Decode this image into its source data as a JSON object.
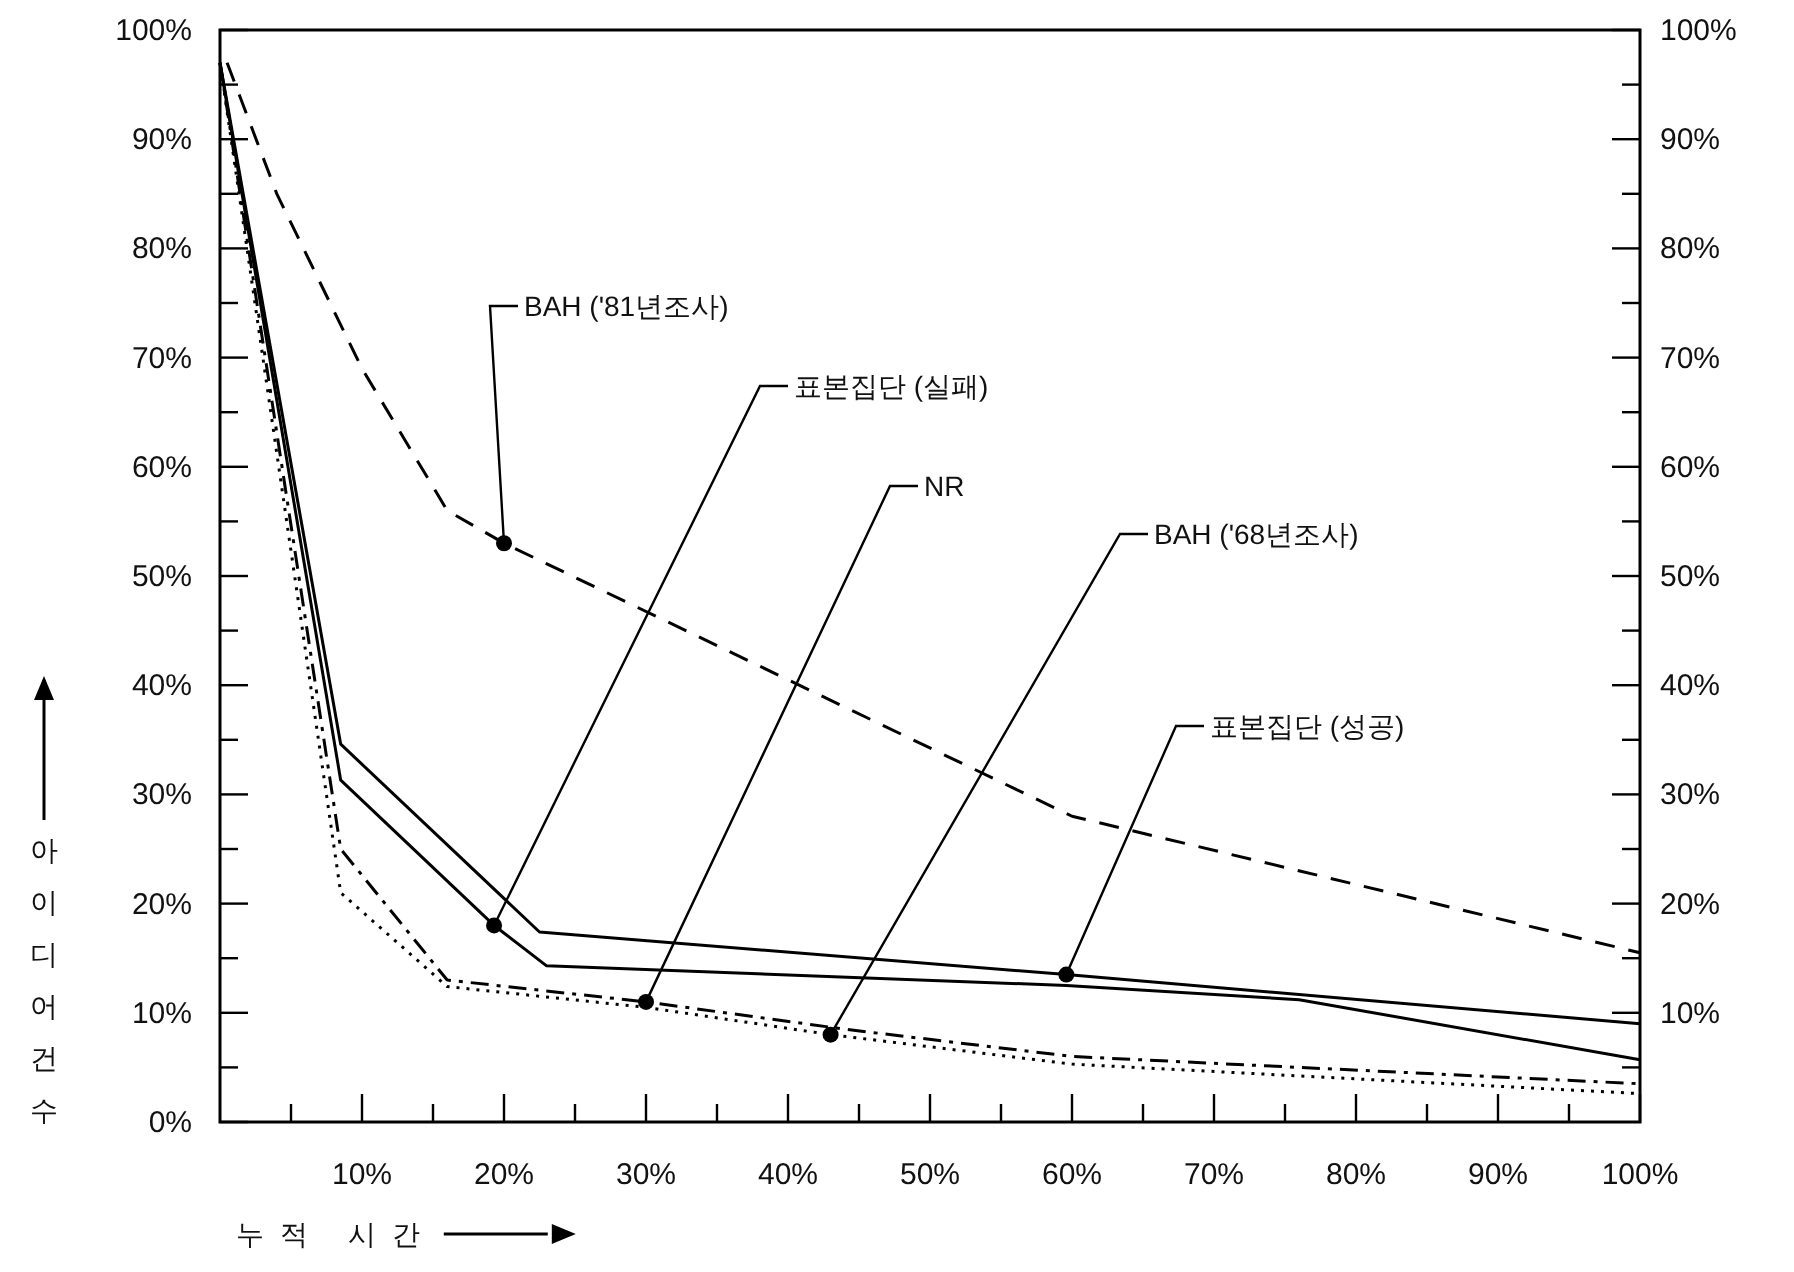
{
  "chart_data": {
    "type": "line",
    "xlim": [
      0,
      100
    ],
    "ylim": [
      0,
      100
    ],
    "y2lim": [
      0,
      100
    ],
    "xticks": [
      {
        "value": 5,
        "label": null
      },
      {
        "value": 10,
        "label": "10%"
      },
      {
        "value": 15,
        "label": null
      },
      {
        "value": 20,
        "label": "20%"
      },
      {
        "value": 25,
        "label": null
      },
      {
        "value": 30,
        "label": "30%"
      },
      {
        "value": 35,
        "label": null
      },
      {
        "value": 40,
        "label": "40%"
      },
      {
        "value": 45,
        "label": null
      },
      {
        "value": 50,
        "label": "50%"
      },
      {
        "value": 55,
        "label": null
      },
      {
        "value": 60,
        "label": "60%"
      },
      {
        "value": 65,
        "label": null
      },
      {
        "value": 70,
        "label": "70%"
      },
      {
        "value": 75,
        "label": null
      },
      {
        "value": 80,
        "label": "80%"
      },
      {
        "value": 85,
        "label": null
      },
      {
        "value": 90,
        "label": "90%"
      },
      {
        "value": 95,
        "label": null
      },
      {
        "value": 100,
        "label": "100%"
      }
    ],
    "yticks": [
      {
        "value": 0,
        "label": "0%"
      },
      {
        "value": 5,
        "label": null
      },
      {
        "value": 10,
        "label": "10%"
      },
      {
        "value": 15,
        "label": null
      },
      {
        "value": 20,
        "label": "20%"
      },
      {
        "value": 25,
        "label": null
      },
      {
        "value": 30,
        "label": "30%"
      },
      {
        "value": 35,
        "label": null
      },
      {
        "value": 40,
        "label": "40%"
      },
      {
        "value": 45,
        "label": null
      },
      {
        "value": 50,
        "label": "50%"
      },
      {
        "value": 55,
        "label": null
      },
      {
        "value": 60,
        "label": "60%"
      },
      {
        "value": 65,
        "label": null
      },
      {
        "value": 70,
        "label": "70%"
      },
      {
        "value": 75,
        "label": null
      },
      {
        "value": 80,
        "label": "80%"
      },
      {
        "value": 85,
        "label": null
      },
      {
        "value": 90,
        "label": "90%"
      },
      {
        "value": 95,
        "label": null
      },
      {
        "value": 100,
        "label": "100%"
      }
    ],
    "y2ticks": [
      {
        "value": 5,
        "label": null
      },
      {
        "value": 10,
        "label": "10%"
      },
      {
        "value": 15,
        "label": null
      },
      {
        "value": 20,
        "label": "20%"
      },
      {
        "value": 25,
        "label": null
      },
      {
        "value": 30,
        "label": "30%"
      },
      {
        "value": 35,
        "label": null
      },
      {
        "value": 40,
        "label": "40%"
      },
      {
        "value": 45,
        "label": null
      },
      {
        "value": 50,
        "label": "50%"
      },
      {
        "value": 55,
        "label": null
      },
      {
        "value": 60,
        "label": "60%"
      },
      {
        "value": 65,
        "label": null
      },
      {
        "value": 70,
        "label": "70%"
      },
      {
        "value": 75,
        "label": null
      },
      {
        "value": 80,
        "label": "80%"
      },
      {
        "value": 85,
        "label": null
      },
      {
        "value": 90,
        "label": "90%"
      },
      {
        "value": 95,
        "label": null
      },
      {
        "value": 100,
        "label": "100%"
      }
    ],
    "xlabel": "누적 시간",
    "ylabel": "아이디어 건수",
    "grid": false,
    "series": [
      {
        "color": "#000000",
        "line_style": "dashed",
        "x": [
          0.5,
          4,
          10,
          16,
          20,
          60,
          100
        ],
        "values": [
          97,
          85,
          69,
          56,
          53,
          28,
          15.5
        ]
      },
      {
        "color": "#000000",
        "line_style": "solid",
        "x": [
          0,
          8.5,
          22.5,
          59.6,
          100
        ],
        "values": [
          97,
          34.6,
          17.4,
          13.5,
          9
        ]
      },
      {
        "color": "#000000",
        "line_style": "solid",
        "x": [
          0,
          8.5,
          19.3,
          23,
          59.6,
          76,
          100
        ],
        "values": [
          97,
          31.3,
          18,
          14.3,
          12.5,
          11.2,
          5.7
        ]
      },
      {
        "color": "#000000",
        "line_style": "dashdot",
        "x": [
          0,
          8.5,
          16,
          30,
          44,
          60,
          100
        ],
        "values": [
          97,
          25,
          13,
          11,
          8.5,
          6,
          3.5
        ]
      },
      {
        "color": "#000000",
        "line_style": "dotted",
        "x": [
          0,
          8.5,
          16,
          30,
          43,
          60,
          100
        ],
        "values": [
          97,
          21,
          12.4,
          10.5,
          8,
          5.3,
          2.6
        ]
      }
    ],
    "annotations": [
      {
        "text": "BAH ('81년조사)",
        "x": 20,
        "y": 53
      },
      {
        "text": "표본집단 (실패)",
        "x": 19.3,
        "y": 18
      },
      {
        "text": "NR",
        "x": 30,
        "y": 11
      },
      {
        "text": "BAH ('68년조사)",
        "x": 43,
        "y": 8
      },
      {
        "text": "표본집단 (성공)",
        "x": 59.6,
        "y": 13.5
      }
    ]
  }
}
